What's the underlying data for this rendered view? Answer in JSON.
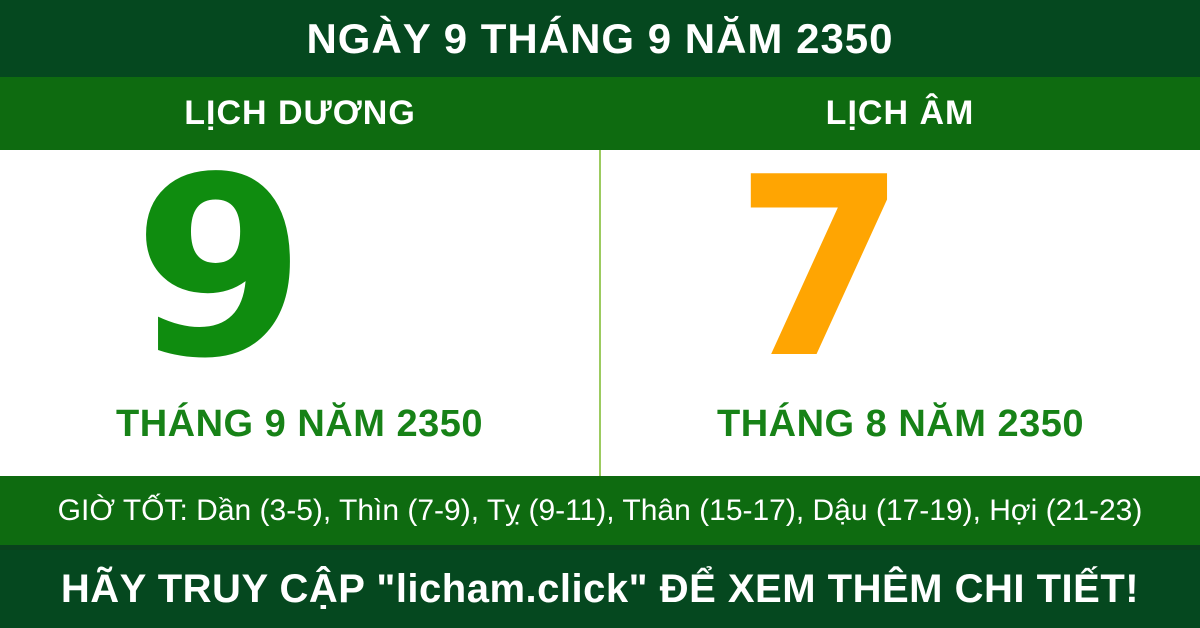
{
  "header": {
    "title": "NGÀY 9 THÁNG 9 NĂM 2350"
  },
  "calendar": {
    "solar": {
      "label": "LỊCH DƯƠNG",
      "day": "9",
      "month_year": "THÁNG 9 NĂM 2350"
    },
    "lunar": {
      "label": "LỊCH ÂM",
      "day": "7",
      "month_year": "THÁNG 8 NĂM 2350"
    }
  },
  "good_hours": {
    "text": "GIỜ TỐT: Dần (3-5), Thìn (7-9), Tỵ (9-11), Thân (15-17), Dậu (17-19), Hợi (21-23)"
  },
  "footer": {
    "text": "HÃY TRUY CẬP \"licham.click\" ĐỂ XEM THÊM CHI TIẾT!"
  },
  "colors": {
    "dark_green": "#05481f",
    "band_green": "#0e6b10",
    "solar_day_green": "#0f8c0f",
    "lunar_day_orange": "#ffa502",
    "month_label_green": "#178217",
    "divider_light_green": "#9ccb60",
    "text_white": "#ffffff",
    "body_white": "#ffffff"
  }
}
